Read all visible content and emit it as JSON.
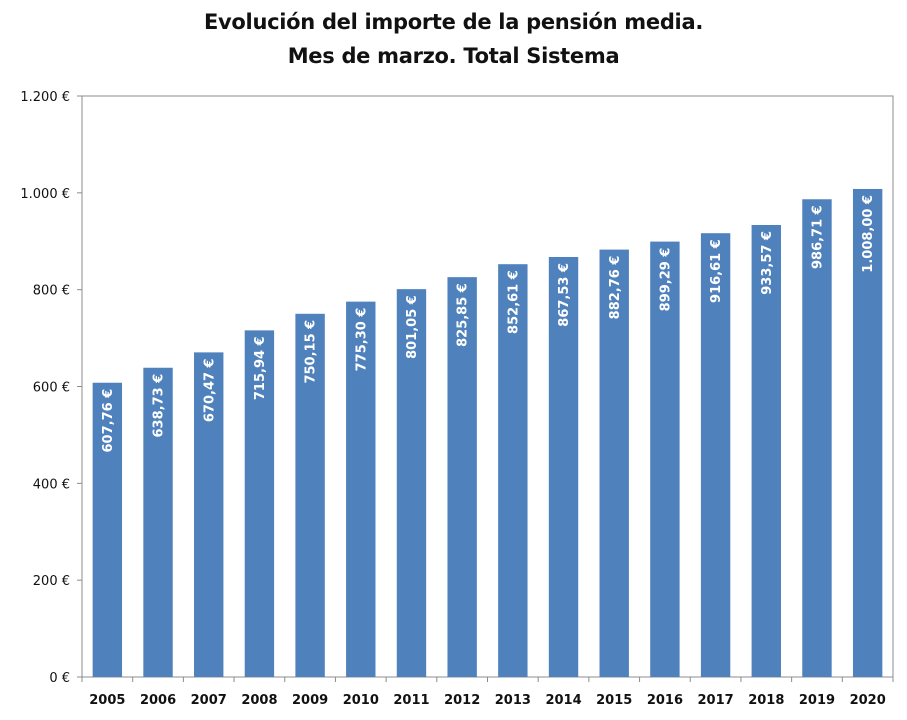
{
  "chart_data": {
    "type": "bar",
    "title": "Evolución del importe de la pensión media.",
    "subtitle": "Mes de marzo. Total Sistema",
    "xlabel": "",
    "ylabel": "",
    "categories": [
      "2005",
      "2006",
      "2007",
      "2008",
      "2009",
      "2010",
      "2011",
      "2012",
      "2013",
      "2014",
      "2015",
      "2016",
      "2017",
      "2018",
      "2019",
      "2020"
    ],
    "values": [
      607.76,
      638.73,
      670.47,
      715.94,
      750.15,
      775.3,
      801.05,
      825.85,
      852.61,
      867.53,
      882.76,
      899.29,
      916.61,
      933.57,
      986.71,
      1008.0
    ],
    "data_labels": [
      "607,76 €",
      "638,73 €",
      "670,47 €",
      "715,94 €",
      "750,15 €",
      "775,30 €",
      "801,05 €",
      "825,85 €",
      "852,61 €",
      "867,53 €",
      "882,76 €",
      "899,29 €",
      "916,61 €",
      "933,57 €",
      "986,71 €",
      "1.008,00 €"
    ],
    "ylim": [
      0,
      1200
    ],
    "y_ticks": [
      0,
      200,
      400,
      600,
      800,
      1000,
      1200
    ],
    "y_tick_labels": [
      "0 €",
      "200 €",
      "400 €",
      "600 €",
      "800 €",
      "1.000 €",
      "1.200 €"
    ],
    "grid": false,
    "legend": "none",
    "colors": {
      "bar": "#4f81bd",
      "data_label": "#ffffff",
      "axis": "#8c8c8c",
      "text": "#111111"
    }
  }
}
